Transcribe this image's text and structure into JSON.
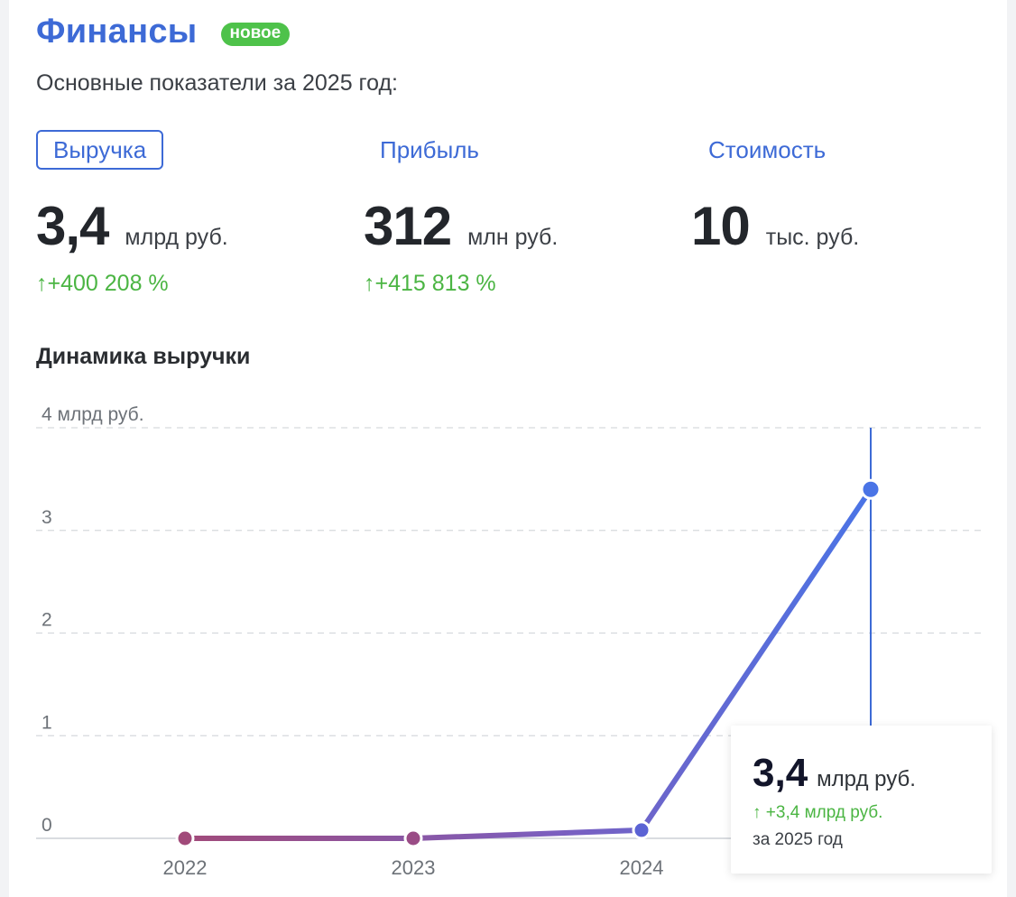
{
  "header": {
    "title": "Финансы",
    "badge": "новое"
  },
  "subtitle": "Основные показатели за 2025 год:",
  "tabs": [
    {
      "label": "Выручка",
      "active": true
    },
    {
      "label": "Прибыль",
      "active": false
    },
    {
      "label": "Стоимость",
      "active": false
    }
  ],
  "metrics": [
    {
      "value": "3,4",
      "unit": "млрд руб.",
      "change": "+400 208 %"
    },
    {
      "value": "312",
      "unit": "млн руб.",
      "change": "+415 813 %"
    },
    {
      "value": "10",
      "unit": "тыс. руб.",
      "change": ""
    }
  ],
  "section_title": "Динамика выручки",
  "colors": {
    "accent": "#3d6ad6",
    "positive": "#4bb543",
    "badge": "#4ec24a",
    "line_start": "#a14a7a",
    "line_end": "#4a74e6"
  },
  "icons": {
    "up_arrow": "up-arrow-icon"
  },
  "chart_data": {
    "type": "line",
    "title": "Динамика выручки",
    "x": [
      "2022",
      "2023",
      "2024",
      "2025"
    ],
    "series": [
      {
        "values": [
          0.0,
          0.0,
          0.08,
          3.4
        ]
      }
    ],
    "x_tick_labels": [
      "2022",
      "2023",
      "2024",
      ""
    ],
    "y_tick_labels": [
      "0",
      "1",
      "2",
      "3",
      "4 млрд руб."
    ],
    "y_ticks": [
      0,
      1,
      2,
      3,
      4
    ],
    "ylim": [
      0,
      4
    ],
    "grid": true,
    "highlight_index": 3
  },
  "tooltip": {
    "value": "3,4",
    "unit": "млрд руб.",
    "change": "+3,4 млрд руб.",
    "period": "за 2025 год"
  }
}
